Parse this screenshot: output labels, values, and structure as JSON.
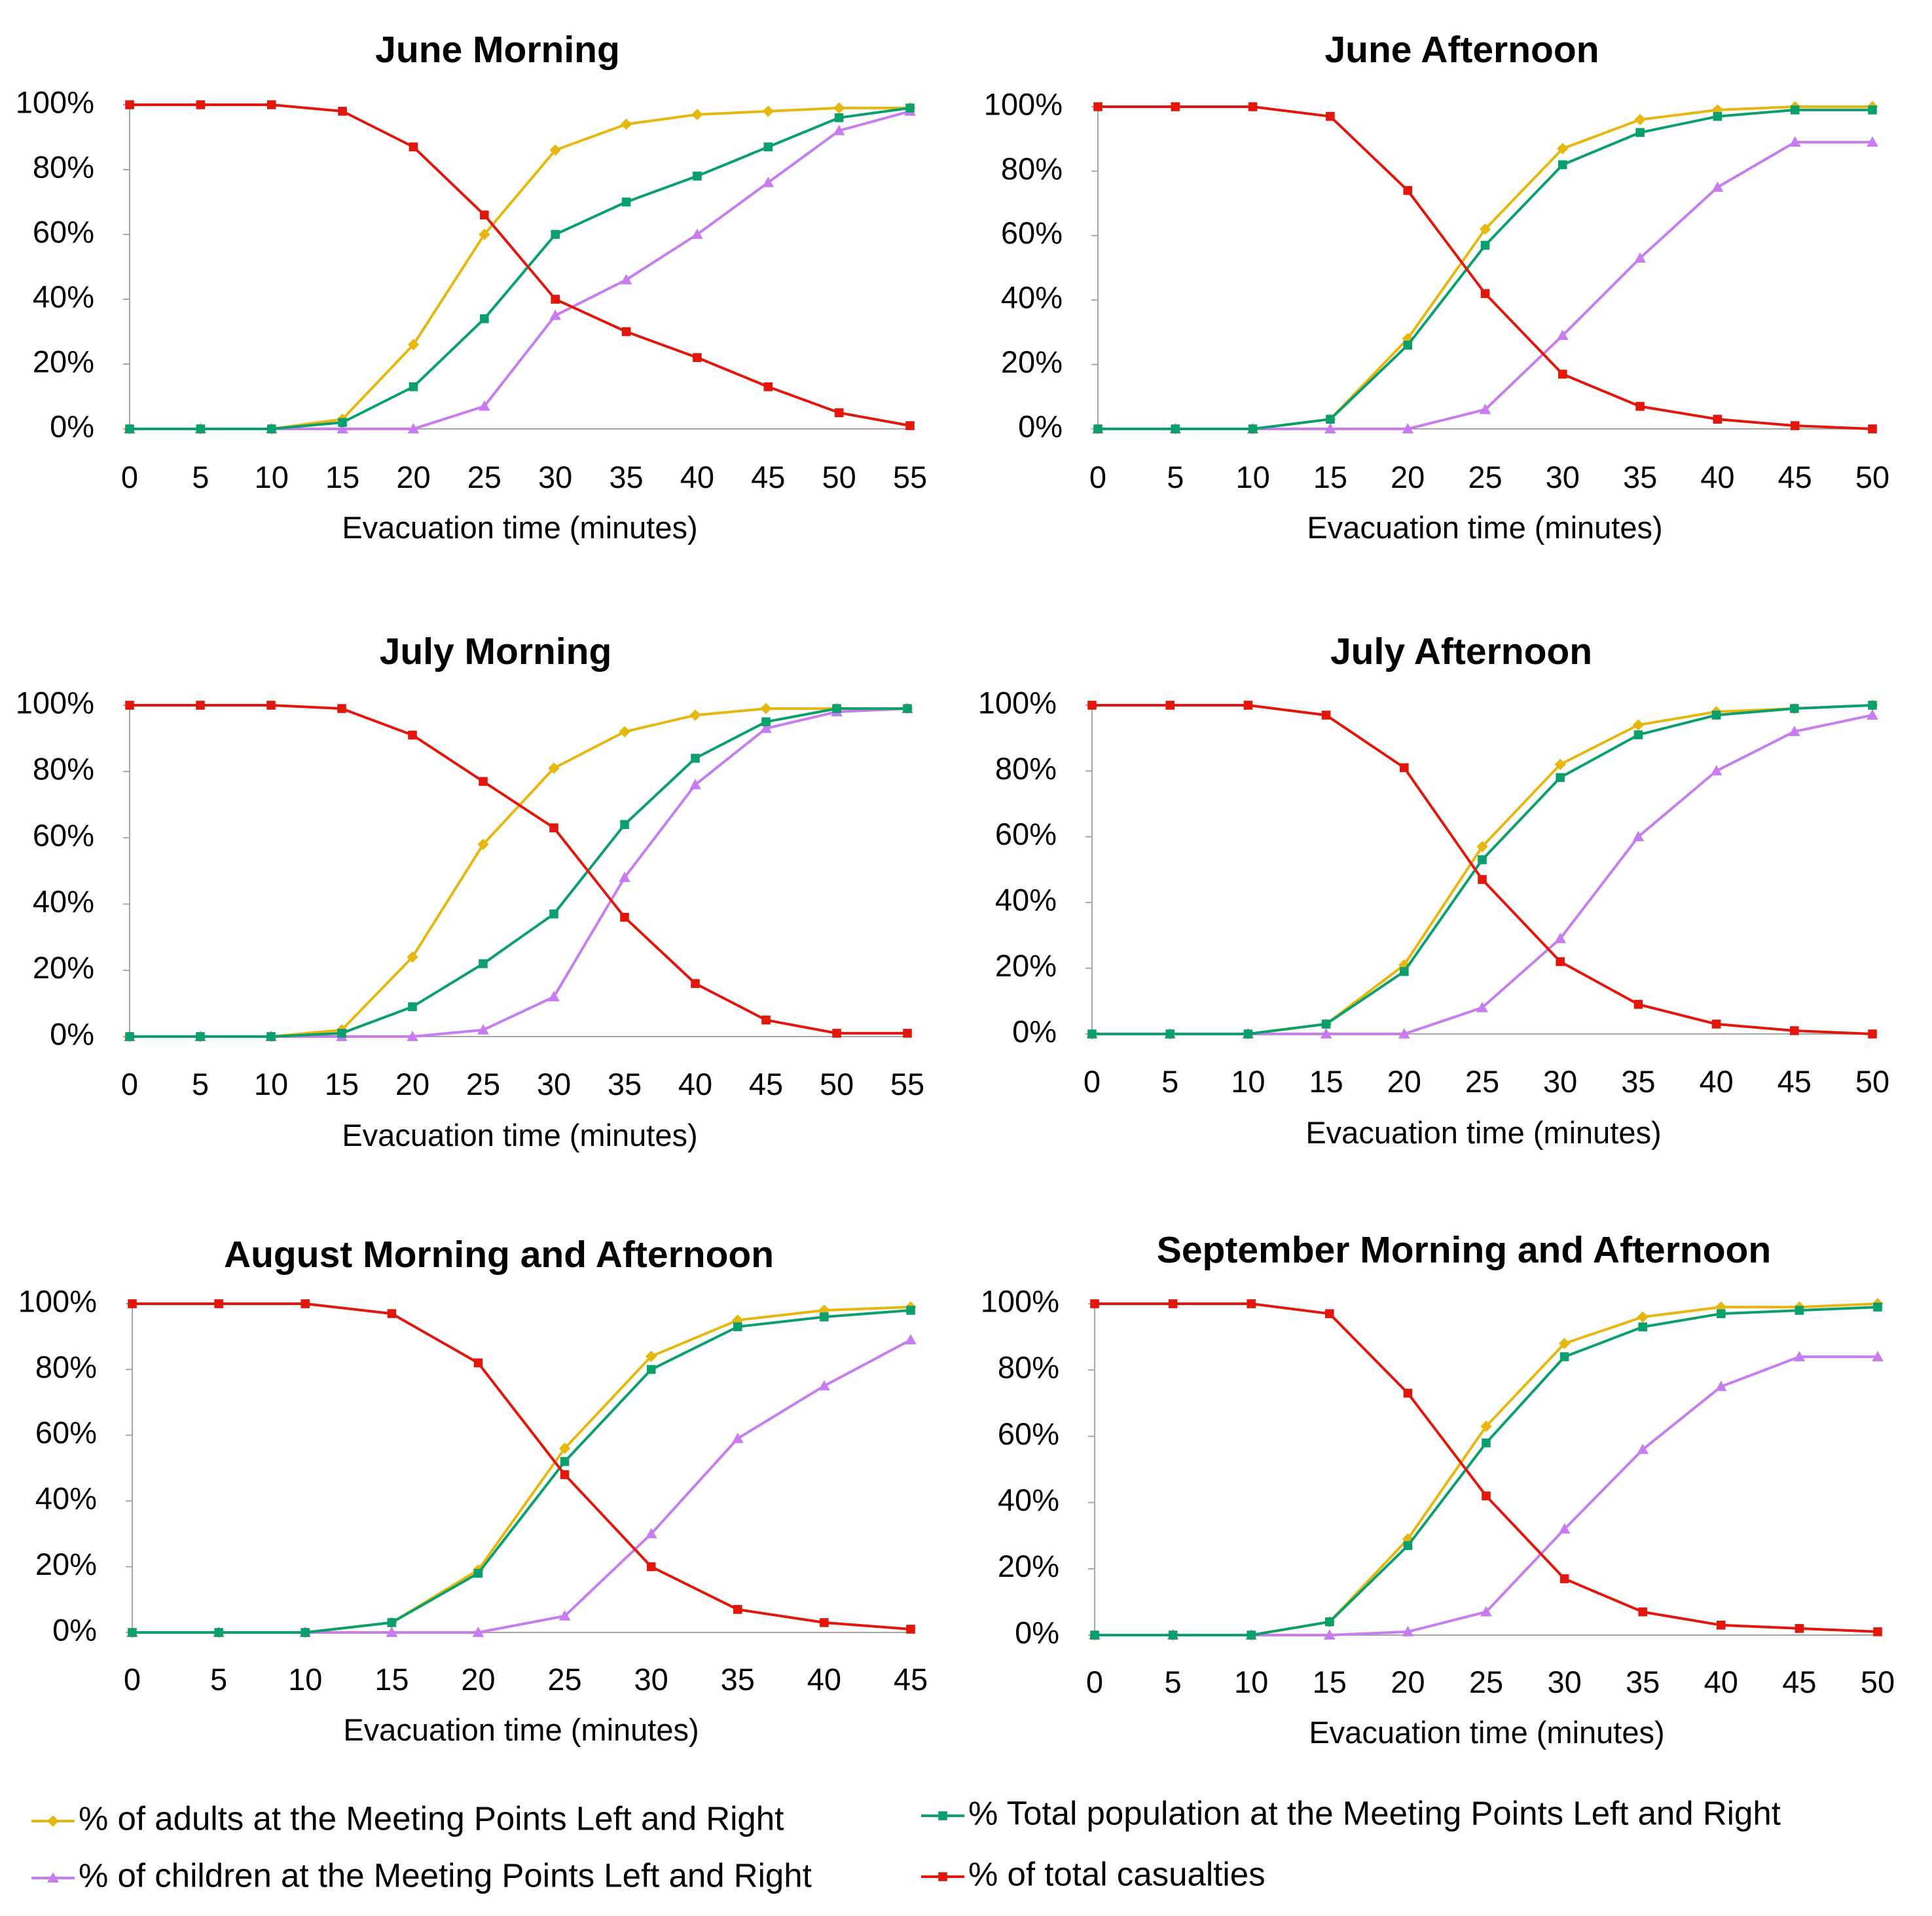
{
  "colors": {
    "adults": "#e6b80f",
    "total_population": "#0aa06e",
    "children": "#c77cf0",
    "casualties": "#e3160c",
    "axis": "#a6a6a6"
  },
  "legend": [
    {
      "key": "adults",
      "label": "% of adults at the Meeting Points Left and Right",
      "marker": "diamond"
    },
    {
      "key": "total_population",
      "label": "% Total population at the Meeting Points Left and Right",
      "marker": "square"
    },
    {
      "key": "children",
      "label": "% of children at the Meeting Points Left and Right",
      "marker": "triangle"
    },
    {
      "key": "casualties",
      "label": "% of total casualties",
      "marker": "square"
    }
  ],
  "chart_data": [
    {
      "type": "line",
      "title": "June Morning",
      "xlabel": "Evacuation time (minutes)",
      "ylabel": "",
      "ylim": [
        0,
        100
      ],
      "yticks": [
        "0%",
        "20%",
        "40%",
        "60%",
        "80%",
        "100%"
      ],
      "x": [
        0,
        5,
        10,
        15,
        20,
        25,
        30,
        35,
        40,
        45,
        50,
        55
      ],
      "series": [
        {
          "key": "adults",
          "name": "% of adults at the Meeting Points Left and Right",
          "values": [
            0,
            0,
            0,
            3,
            26,
            60,
            86,
            94,
            97,
            98,
            99,
            99
          ]
        },
        {
          "key": "total_population",
          "name": "% Total population at the Meeting Points Left and Right",
          "values": [
            0,
            0,
            0,
            2,
            13,
            34,
            60,
            70,
            78,
            87,
            96,
            99
          ]
        },
        {
          "key": "children",
          "name": "% of children at the Meeting Points Left and Right",
          "values": [
            0,
            0,
            0,
            0,
            0,
            7,
            35,
            46,
            60,
            76,
            92,
            98
          ]
        },
        {
          "key": "casualties",
          "name": "% of total casualties",
          "values": [
            100,
            100,
            100,
            98,
            87,
            66,
            40,
            30,
            22,
            13,
            5,
            1
          ]
        }
      ]
    },
    {
      "type": "line",
      "title": "June Afternoon",
      "xlabel": "Evacuation time (minutes)",
      "ylabel": "",
      "ylim": [
        0,
        100
      ],
      "yticks": [
        "0%",
        "20%",
        "40%",
        "60%",
        "80%",
        "100%"
      ],
      "x": [
        0,
        5,
        10,
        15,
        20,
        25,
        30,
        35,
        40,
        45,
        50
      ],
      "series": [
        {
          "key": "adults",
          "name": "% of adults at the Meeting Points Left and Right",
          "values": [
            0,
            0,
            0,
            3,
            28,
            62,
            87,
            96,
            99,
            100,
            100
          ]
        },
        {
          "key": "total_population",
          "name": "% Total population at the Meeting Points Left and Right",
          "values": [
            0,
            0,
            0,
            3,
            26,
            57,
            82,
            92,
            97,
            99,
            99
          ]
        },
        {
          "key": "children",
          "name": "% of children at the Meeting Points Left and Right",
          "values": [
            0,
            0,
            0,
            0,
            0,
            6,
            29,
            53,
            75,
            89,
            89
          ]
        },
        {
          "key": "casualties",
          "name": "% of total casualties",
          "values": [
            100,
            100,
            100,
            97,
            74,
            42,
            17,
            7,
            3,
            1,
            0
          ]
        }
      ]
    },
    {
      "type": "line",
      "title": "July Morning",
      "xlabel": "Evacuation time (minutes)",
      "ylabel": "",
      "ylim": [
        0,
        100
      ],
      "yticks": [
        "0%",
        "20%",
        "40%",
        "60%",
        "80%",
        "100%"
      ],
      "x": [
        0,
        5,
        10,
        15,
        20,
        25,
        30,
        35,
        40,
        45,
        50,
        55
      ],
      "series": [
        {
          "key": "adults",
          "name": "% of adults at the Meeting Points Left and Right",
          "values": [
            0,
            0,
            0,
            2,
            24,
            58,
            81,
            92,
            97,
            99,
            99,
            99
          ]
        },
        {
          "key": "total_population",
          "name": "% Total population at the Meeting Points Left and Right",
          "values": [
            0,
            0,
            0,
            1,
            9,
            22,
            37,
            64,
            84,
            95,
            99,
            99
          ]
        },
        {
          "key": "children",
          "name": "% of children at the Meeting Points Left and Right",
          "values": [
            0,
            0,
            0,
            0,
            0,
            2,
            12,
            48,
            76,
            93,
            98,
            99
          ]
        },
        {
          "key": "casualties",
          "name": "% of total casualties",
          "values": [
            100,
            100,
            100,
            99,
            91,
            77,
            63,
            36,
            16,
            5,
            1,
            1
          ]
        }
      ]
    },
    {
      "type": "line",
      "title": "July Afternoon",
      "xlabel": "Evacuation time (minutes)",
      "ylabel": "",
      "ylim": [
        0,
        100
      ],
      "yticks": [
        "0%",
        "20%",
        "40%",
        "60%",
        "80%",
        "100%"
      ],
      "x": [
        0,
        5,
        10,
        15,
        20,
        25,
        30,
        35,
        40,
        45,
        50
      ],
      "series": [
        {
          "key": "adults",
          "name": "% of adults at the Meeting Points Left and Right",
          "values": [
            0,
            0,
            0,
            3,
            21,
            57,
            82,
            94,
            98,
            99,
            100
          ]
        },
        {
          "key": "total_population",
          "name": "% Total population at the Meeting Points Left and Right",
          "values": [
            0,
            0,
            0,
            3,
            19,
            53,
            78,
            91,
            97,
            99,
            100
          ]
        },
        {
          "key": "children",
          "name": "% of children at the Meeting Points Left and Right",
          "values": [
            0,
            0,
            0,
            0,
            0,
            8,
            29,
            60,
            80,
            92,
            97
          ]
        },
        {
          "key": "casualties",
          "name": "% of total casualties",
          "values": [
            100,
            100,
            100,
            97,
            81,
            47,
            22,
            9,
            3,
            1,
            0
          ]
        }
      ]
    },
    {
      "type": "line",
      "title": "August Morning and Afternoon",
      "xlabel": "Evacuation time (minutes)",
      "ylabel": "",
      "ylim": [
        0,
        100
      ],
      "yticks": [
        "0%",
        "20%",
        "40%",
        "60%",
        "80%",
        "100%"
      ],
      "x": [
        0,
        5,
        10,
        15,
        20,
        25,
        30,
        35,
        40,
        45
      ],
      "series": [
        {
          "key": "adults",
          "name": "% of adults at the Meeting Points Left and Right",
          "values": [
            0,
            0,
            0,
            3,
            19,
            56,
            84,
            95,
            98,
            99
          ]
        },
        {
          "key": "total_population",
          "name": "% Total population at the Meeting Points Left and Right",
          "values": [
            0,
            0,
            0,
            3,
            18,
            52,
            80,
            93,
            96,
            98
          ]
        },
        {
          "key": "children",
          "name": "% of children at the Meeting Points Left and Right",
          "values": [
            0,
            0,
            0,
            0,
            0,
            5,
            30,
            59,
            75,
            89
          ]
        },
        {
          "key": "casualties",
          "name": "% of total casualties",
          "values": [
            100,
            100,
            100,
            97,
            82,
            48,
            20,
            7,
            3,
            1
          ]
        }
      ]
    },
    {
      "type": "line",
      "title": "September Morning and Afternoon",
      "xlabel": "Evacuation time (minutes)",
      "ylabel": "",
      "ylim": [
        0,
        100
      ],
      "yticks": [
        "0%",
        "20%",
        "40%",
        "60%",
        "80%",
        "100%"
      ],
      "x": [
        0,
        5,
        10,
        15,
        20,
        25,
        30,
        35,
        40,
        45,
        50
      ],
      "series": [
        {
          "key": "adults",
          "name": "% of adults at the Meeting Points Left and Right",
          "values": [
            0,
            0,
            0,
            4,
            29,
            63,
            88,
            96,
            99,
            99,
            100
          ]
        },
        {
          "key": "total_population",
          "name": "% Total population at the Meeting Points Left and Right",
          "values": [
            0,
            0,
            0,
            4,
            27,
            58,
            84,
            93,
            97,
            98,
            99
          ]
        },
        {
          "key": "children",
          "name": "% of children at the Meeting Points Left and Right",
          "values": [
            0,
            0,
            0,
            0,
            1,
            7,
            32,
            56,
            75,
            84,
            84
          ]
        },
        {
          "key": "casualties",
          "name": "% of total casualties",
          "values": [
            100,
            100,
            100,
            97,
            73,
            42,
            17,
            7,
            3,
            2,
            1
          ]
        }
      ]
    }
  ]
}
